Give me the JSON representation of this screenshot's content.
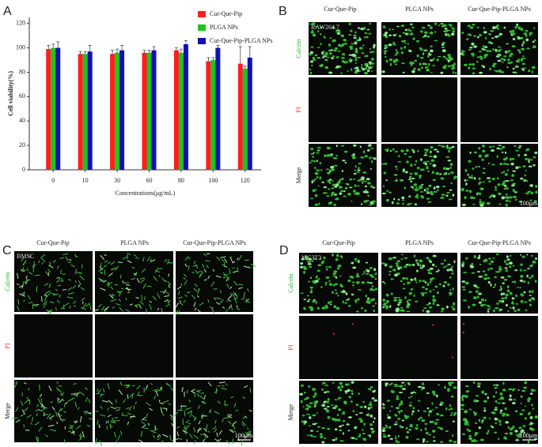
{
  "chart_data": {
    "type": "bar",
    "ylabel": "Cell viability(%)",
    "xlabel": "Concentrations(μg/mL)",
    "categories": [
      "0",
      "10",
      "30",
      "60",
      "80",
      "100",
      "120"
    ],
    "series": [
      {
        "name": "Cur-Que-Pip",
        "color": "#ff1f1f",
        "values": [
          99,
          95,
          95,
          96,
          98,
          89,
          87
        ],
        "errors": [
          3,
          2,
          3,
          2,
          2,
          3,
          14
        ]
      },
      {
        "name": "PLGA NPs",
        "color": "#1fc21f",
        "values": [
          100,
          95,
          96,
          96,
          96,
          90,
          83
        ],
        "errors": [
          3,
          2,
          3,
          2,
          3,
          2,
          2
        ]
      },
      {
        "name": "Cur-Que-Pip-PLGA NPs",
        "color": "#1010b4",
        "values": [
          100,
          97,
          98,
          98,
          103,
          100,
          92
        ],
        "errors": [
          5,
          5,
          4,
          3,
          3,
          2,
          9
        ]
      }
    ],
    "ylim": [
      0,
      125
    ],
    "yticks": [
      0,
      20,
      40,
      60,
      80,
      100,
      120
    ],
    "legend": "top-right"
  },
  "panels": [
    {
      "letter": "A"
    },
    {
      "letter": "B",
      "columns": [
        "Cur-Que-Pip",
        "PLGA NPs",
        "Cur-Que-Pip-PLGA NPs"
      ],
      "rows": [
        "Calcein",
        "PI",
        "Merge"
      ],
      "cell_line": "RAW264.7",
      "scale_bar": "100μm"
    },
    {
      "letter": "C",
      "columns": [
        "Cur-Que-Pip",
        "PLGA NPs",
        "Cur-Que-Pip-PLGA NPs"
      ],
      "rows": [
        "Calcein",
        "PI",
        "Merge"
      ],
      "cell_line": "BMSC",
      "scale_bar": "100μm"
    },
    {
      "letter": "D",
      "columns": [
        "Cur-Que-Pip",
        "PLGA NPs",
        "Cur-Que-Pip-PLGA NPs"
      ],
      "rows": [
        "Calcein",
        "PI",
        "Merge"
      ],
      "cell_line": "MC3T3",
      "scale_bar": "100μm"
    }
  ]
}
